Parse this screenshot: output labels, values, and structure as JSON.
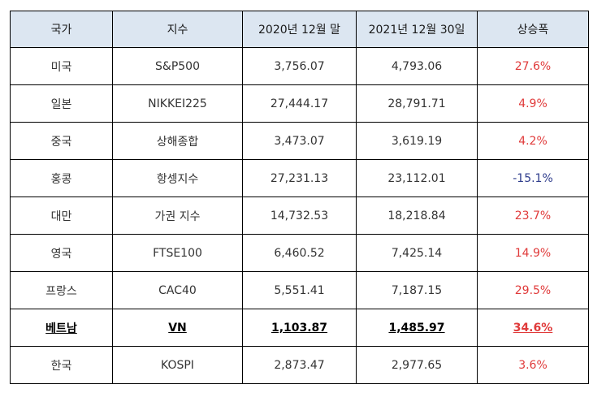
{
  "headers": [
    "국가",
    "지수",
    "2020년 12월 말",
    "2021년 12월 30일",
    "상승폭"
  ],
  "rows": [
    [
      "미국",
      "S&P500",
      "3,756.07",
      "4,793.06",
      "27.6%"
    ],
    [
      "일본",
      "NIKKEI225",
      "27,444.17",
      "28,791.71",
      "4.9%"
    ],
    [
      "중국",
      "상해종합",
      "3,473.07",
      "3,619.19",
      "4.2%"
    ],
    [
      "홍콩",
      "항셍지수",
      "27,231.13",
      "23,112.01",
      "-15.1%"
    ],
    [
      "대만",
      "가권 지수",
      "14,732.53",
      "18,218.84",
      "23.7%"
    ],
    [
      "영국",
      "FTSE100",
      "6,460.52",
      "7,425.14",
      "14.9%"
    ],
    [
      "프랑스",
      "CAC40",
      "5,551.41",
      "7,187.15",
      "29.5%"
    ],
    [
      "베트남",
      "VN",
      "1,103.87",
      "1,485.97",
      "34.6%"
    ],
    [
      "한국",
      "KOSPI",
      "2,873.47",
      "2,977.65",
      "3.6%"
    ]
  ],
  "colors": {
    "header_bg": "#dce6f1",
    "positive_change": "#e03a3a",
    "negative_change": "#2e3c8c"
  }
}
